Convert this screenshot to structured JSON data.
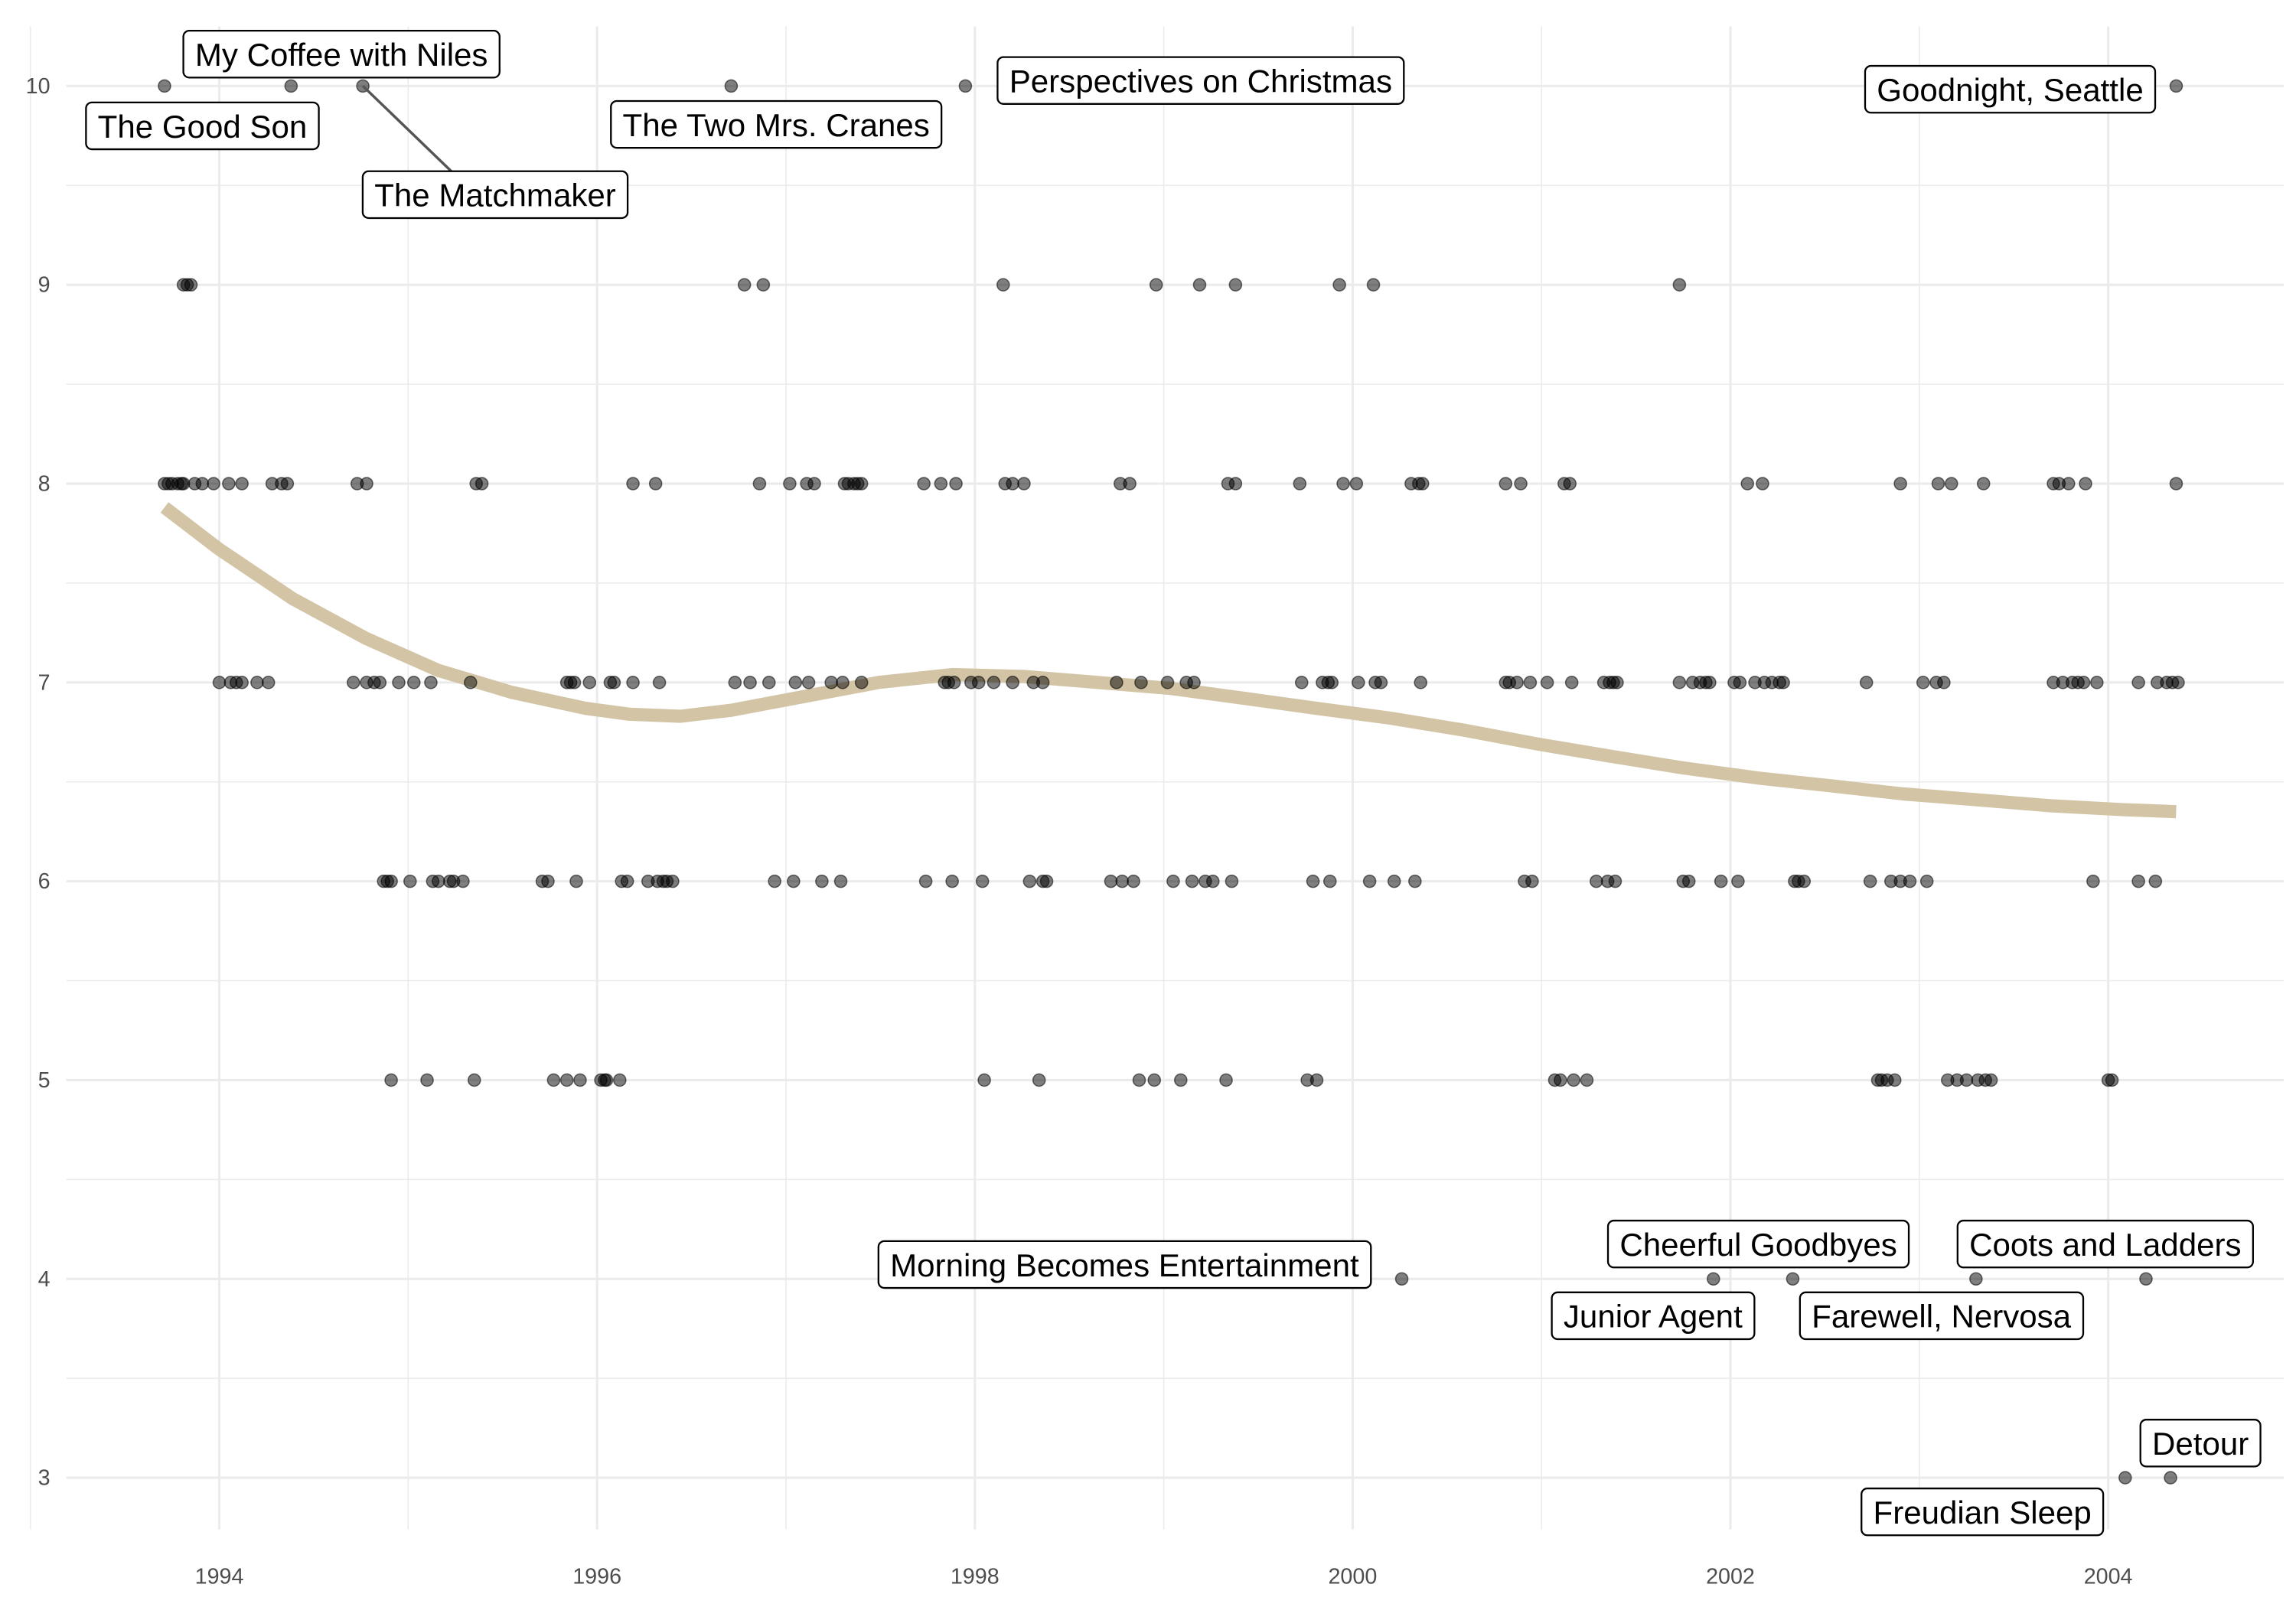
{
  "chart_data": {
    "type": "scatter",
    "title": "",
    "xlabel": "",
    "ylabel": "",
    "xlim": [
      1993.19,
      2004.93
    ],
    "ylim": [
      2.74,
      10.3
    ],
    "x_ticks": [
      1994,
      1996,
      1998,
      2000,
      2002,
      2004
    ],
    "y_ticks": [
      3,
      4,
      5,
      6,
      7,
      8,
      9,
      10
    ],
    "grid": true,
    "point_color": "#000000",
    "point_opacity": 0.5,
    "smooth_color": "#d2c4a5",
    "rows": [
      {
        "y": 10,
        "x": [
          1993.71,
          1994.38,
          1994.76,
          1996.71,
          1997.95,
          2004.36
        ]
      },
      {
        "y": 9,
        "x": [
          1993.81,
          1993.83,
          1993.85,
          1996.78,
          1996.88,
          1998.15,
          1998.96,
          1999.19,
          1999.38,
          1999.93,
          2000.11,
          2001.73
        ]
      },
      {
        "y": 8,
        "x": [
          1993.71,
          1993.73,
          1993.75,
          1993.78,
          1993.8,
          1993.81,
          1993.87,
          1993.91,
          1993.97,
          1994.05,
          1994.12,
          1994.28,
          1994.33,
          1994.36,
          1994.73,
          1994.78,
          1995.36,
          1995.39,
          1996.19,
          1996.31,
          1996.86,
          1997.02,
          1997.11,
          1997.15,
          1997.31,
          1997.33,
          1997.36,
          1997.38,
          1997.4,
          1997.73,
          1997.82,
          1997.9,
          1998.16,
          1998.2,
          1998.26,
          1998.77,
          1998.82,
          1999.34,
          1999.38,
          1999.72,
          1999.95,
          2000.02,
          2000.31,
          2000.35,
          2000.37,
          2000.81,
          2000.89,
          2001.12,
          2001.15,
          2002.09,
          2002.17,
          2002.9,
          2003.1,
          2003.17,
          2003.34,
          2003.71,
          2003.74,
          2003.79,
          2003.88,
          2004.36
        ]
      },
      {
        "y": 7,
        "x": [
          1994.0,
          1994.06,
          1994.09,
          1994.12,
          1994.2,
          1994.26,
          1994.71,
          1994.78,
          1994.82,
          1994.85,
          1994.95,
          1995.03,
          1995.12,
          1995.33,
          1995.84,
          1995.86,
          1995.88,
          1995.96,
          1996.07,
          1996.09,
          1996.19,
          1996.33,
          1996.73,
          1996.81,
          1996.91,
          1997.05,
          1997.12,
          1997.24,
          1997.3,
          1997.4,
          1997.84,
          1997.86,
          1997.89,
          1997.98,
          1998.02,
          1998.1,
          1998.2,
          1998.31,
          1998.36,
          1998.75,
          1998.88,
          1999.02,
          1999.12,
          1999.16,
          1999.73,
          1999.84,
          1999.87,
          1999.89,
          2000.03,
          2000.12,
          2000.15,
          2000.36,
          2000.81,
          2000.83,
          2000.87,
          2000.94,
          2001.03,
          2001.16,
          2001.33,
          2001.36,
          2001.38,
          2001.4,
          2001.73,
          2001.8,
          2001.84,
          2001.87,
          2001.89,
          2002.02,
          2002.05,
          2002.13,
          2002.18,
          2002.22,
          2002.26,
          2002.28,
          2002.72,
          2003.02,
          2003.09,
          2003.13,
          2003.71,
          2003.76,
          2003.81,
          2003.84,
          2003.87,
          2003.94,
          2004.16,
          2004.26,
          2004.31,
          2004.34,
          2004.37
        ]
      },
      {
        "y": 6,
        "x": [
          1994.87,
          1994.89,
          1994.91,
          1995.01,
          1995.13,
          1995.16,
          1995.22,
          1995.24,
          1995.29,
          1995.71,
          1995.74,
          1995.89,
          1996.13,
          1996.16,
          1996.27,
          1996.32,
          1996.35,
          1996.37,
          1996.4,
          1996.94,
          1997.04,
          1997.19,
          1997.29,
          1997.74,
          1997.88,
          1998.04,
          1998.29,
          1998.36,
          1998.38,
          1998.72,
          1998.78,
          1998.84,
          1999.05,
          1999.15,
          1999.22,
          1999.26,
          1999.36,
          1999.79,
          1999.88,
          2000.09,
          2000.22,
          2000.33,
          2000.91,
          2000.95,
          2001.29,
          2001.35,
          2001.39,
          2001.75,
          2001.78,
          2001.95,
          2002.04,
          2002.34,
          2002.36,
          2002.39,
          2002.74,
          2002.85,
          2002.9,
          2002.95,
          2003.04,
          2003.92,
          2004.16,
          2004.25
        ]
      },
      {
        "y": 5,
        "x": [
          1994.91,
          1995.1,
          1995.35,
          1995.77,
          1995.84,
          1995.91,
          1996.02,
          1996.04,
          1996.05,
          1996.12,
          1998.05,
          1998.34,
          1998.87,
          1998.95,
          1999.09,
          1999.33,
          1999.76,
          1999.81,
          2001.07,
          2001.1,
          2001.17,
          2001.24,
          2002.78,
          2002.8,
          2002.83,
          2002.87,
          2003.15,
          2003.2,
          2003.25,
          2003.31,
          2003.35,
          2003.38,
          2004.0,
          2004.02
        ]
      },
      {
        "y": 4,
        "x": [
          2000.26,
          2001.91,
          2002.33,
          2003.3,
          2004.2
        ]
      },
      {
        "y": 3,
        "x": [
          2004.09,
          2004.33
        ]
      }
    ],
    "annotations": [
      {
        "text": "The Good Son",
        "x": 1993.71,
        "y": 10
      },
      {
        "text": "My Coffee with Niles",
        "x": 1994.38,
        "y": 10
      },
      {
        "text": "The Matchmaker",
        "x": 1994.76,
        "y": 10
      },
      {
        "text": "The Two Mrs. Cranes",
        "x": 1996.71,
        "y": 10
      },
      {
        "text": "Perspectives on Christmas",
        "x": 1997.95,
        "y": 10
      },
      {
        "text": "Goodnight, Seattle",
        "x": 2004.36,
        "y": 10
      },
      {
        "text": "Morning Becomes Entertainment",
        "x": 2000.26,
        "y": 4
      },
      {
        "text": "Junior Agent",
        "x": 2001.91,
        "y": 4
      },
      {
        "text": "Cheerful Goodbyes",
        "x": 2002.33,
        "y": 4
      },
      {
        "text": "Farewell, Nervosa",
        "x": 2003.3,
        "y": 4
      },
      {
        "text": "Coots and Ladders",
        "x": 2004.2,
        "y": 4
      },
      {
        "text": "Freudian Sleep",
        "x": 2004.09,
        "y": 3
      },
      {
        "text": "Detour",
        "x": 2004.33,
        "y": 3
      }
    ],
    "smooth": {
      "x": [
        1993.71,
        1994.0,
        1994.39,
        1994.78,
        1995.16,
        1995.55,
        1995.94,
        1996.17,
        1996.44,
        1996.71,
        1997.1,
        1997.49,
        1997.88,
        1998.26,
        1998.65,
        1999.04,
        1999.43,
        1999.81,
        2000.2,
        2000.59,
        2000.98,
        2001.36,
        2001.75,
        2002.14,
        2002.53,
        2002.91,
        2003.3,
        2003.69,
        2004.08,
        2004.36
      ],
      "y": [
        7.88,
        7.67,
        7.42,
        7.22,
        7.06,
        6.95,
        6.87,
        6.84,
        6.83,
        6.86,
        6.93,
        7.0,
        7.04,
        7.03,
        7.0,
        6.97,
        6.92,
        6.87,
        6.82,
        6.76,
        6.69,
        6.63,
        6.57,
        6.52,
        6.48,
        6.44,
        6.41,
        6.38,
        6.36,
        6.35
      ]
    }
  }
}
